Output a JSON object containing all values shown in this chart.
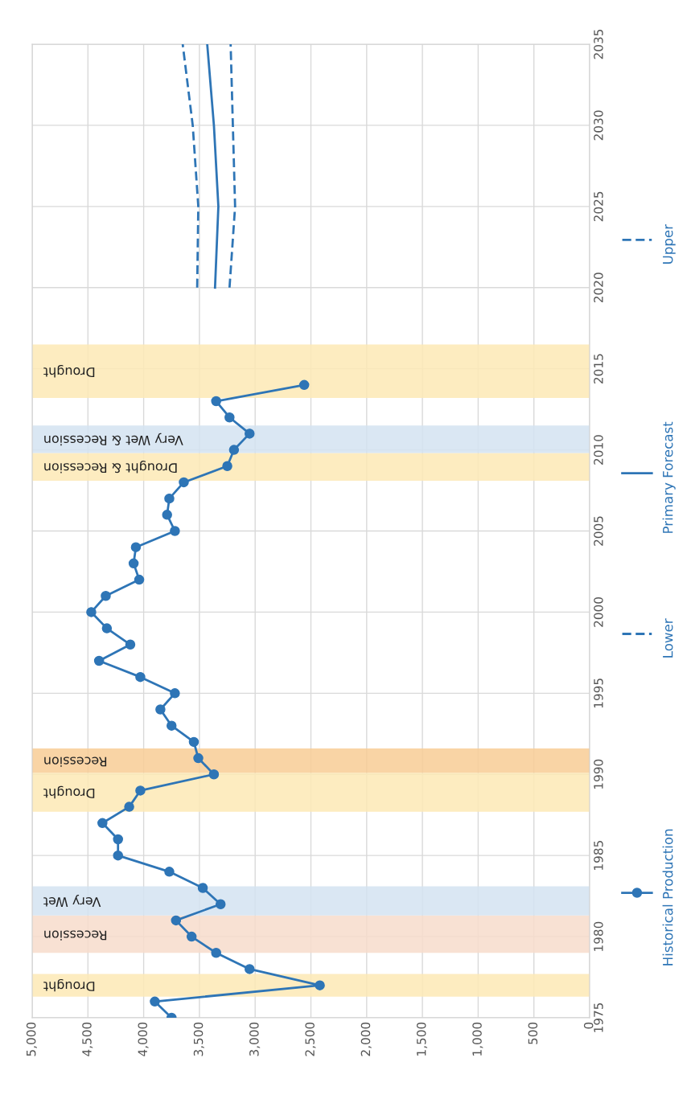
{
  "chart_data": {
    "type": "line",
    "orientation": "horizontal",
    "series": [
      {
        "name": "Historical Production",
        "color": "#2e75b6",
        "marker": "circle",
        "line_style": "solid",
        "x": [
          1975,
          1976,
          1977,
          1978,
          1979,
          1980,
          1981,
          1982,
          1983,
          1984,
          1985,
          1986,
          1987,
          1988,
          1989,
          1990,
          1991,
          1992,
          1993,
          1994,
          1995,
          1996,
          1997,
          1998,
          1999,
          2000,
          2001,
          2002,
          2003,
          2004,
          2005,
          2006,
          2007,
          2008,
          2009,
          2010,
          2011,
          2012,
          2013,
          2014
        ],
        "values": [
          3750,
          3900,
          2420,
          3050,
          3350,
          3570,
          3710,
          3310,
          3470,
          3770,
          4230,
          4230,
          4370,
          4130,
          4030,
          3370,
          3510,
          3550,
          3750,
          3850,
          3720,
          4030,
          4400,
          4120,
          4330,
          4470,
          4340,
          4040,
          4090,
          4070,
          3720,
          3790,
          3770,
          3640,
          3250,
          3190,
          3050,
          3230,
          3350,
          2560
        ]
      },
      {
        "name": "Lower",
        "color": "#2e75b6",
        "marker": "none",
        "line_style": "dashed",
        "x": [
          2020,
          2025,
          2030,
          2035
        ],
        "values": [
          3230,
          3180,
          3200,
          3220
        ]
      },
      {
        "name": "Primary Forecast",
        "color": "#2e75b6",
        "marker": "none",
        "line_style": "solid",
        "x": [
          2020,
          2025,
          2030,
          2035
        ],
        "values": [
          3360,
          3330,
          3370,
          3430
        ]
      },
      {
        "name": "Upper",
        "color": "#2e75b6",
        "marker": "none",
        "line_style": "dashed",
        "x": [
          2020,
          2025,
          2030,
          2035
        ],
        "values": [
          3520,
          3510,
          3560,
          3650
        ]
      }
    ],
    "bands": [
      {
        "axis": "y",
        "from": 1976.3,
        "to": 1977.7,
        "label": "Drought",
        "color": "#fde9b5"
      },
      {
        "axis": "y",
        "from": 1979.0,
        "to": 1981.3,
        "label": "Recession",
        "color": "#f7dccb"
      },
      {
        "axis": "y",
        "from": 1981.3,
        "to": 1983.1,
        "label": "Very Wet",
        "color": "#d3e3f1"
      },
      {
        "axis": "y",
        "from": 1987.7,
        "to": 1990.1,
        "label": "Drought",
        "color": "#fde9b5"
      },
      {
        "axis": "y",
        "from": 1990.1,
        "to": 1991.6,
        "label": "Recession",
        "color": "#f8cd95"
      },
      {
        "axis": "y",
        "from": 2008.1,
        "to": 2009.8,
        "label": "Drought & Recession",
        "color": "#fde9b5"
      },
      {
        "axis": "y",
        "from": 2009.8,
        "to": 2011.5,
        "label": "Very Wet & Recession",
        "color": "#d3e3f1"
      },
      {
        "axis": "y",
        "from": 2013.2,
        "to": 2016.5,
        "label": "Drought",
        "color": "#fde9b5"
      }
    ],
    "xlim": [
      5000,
      0
    ],
    "xticks": [
      {
        "value": 5000,
        "label": "5,000"
      },
      {
        "value": 4500,
        "label": "4,500"
      },
      {
        "value": 4000,
        "label": "4,000"
      },
      {
        "value": 3500,
        "label": "3,500"
      },
      {
        "value": 3000,
        "label": "3,000"
      },
      {
        "value": 2500,
        "label": "2,500"
      },
      {
        "value": 2000,
        "label": "2,000"
      },
      {
        "value": 1500,
        "label": "1,500"
      },
      {
        "value": 1000,
        "label": "1,000"
      },
      {
        "value": 500,
        "label": "500"
      },
      0
    ],
    "ylim": [
      1975,
      2035
    ],
    "yticks": [
      1975,
      1980,
      1985,
      1990,
      1995,
      2000,
      2005,
      2010,
      2015,
      2020,
      2025,
      2030,
      2035
    ],
    "grid": true,
    "legend": "right"
  }
}
